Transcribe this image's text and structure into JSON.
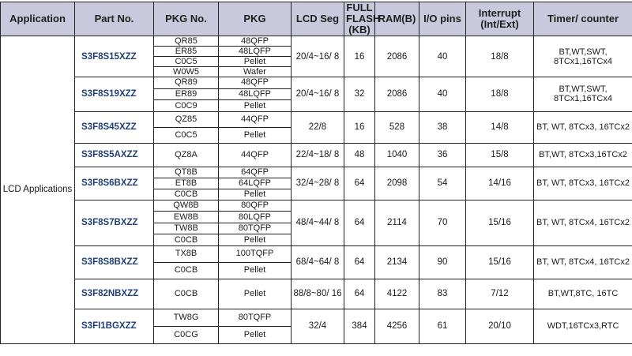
{
  "headers": {
    "application": "Application",
    "part_no": "Part No.",
    "pkg_no": "PKG No.",
    "pkg": "PKG",
    "lcd_seg": "LCD Seg",
    "flash": "FULL FLASH (KB)",
    "ram": "RAM(B)",
    "io": "I/O pins",
    "interrupt": "Interrupt (Int/Ext)",
    "timer": "Timer/ counter"
  },
  "application": "LCD Applications",
  "rows": [
    {
      "part": "S3F8S15XZZ",
      "pkgs": [
        {
          "no": "QR85",
          "pkg": "48QFP"
        },
        {
          "no": "ER85",
          "pkg": "48LQFP"
        },
        {
          "no": "C0C5",
          "pkg": "Pellet"
        },
        {
          "no": "W0W5",
          "pkg": "Wafer"
        }
      ],
      "lcd": "20/4~16/ 8",
      "flash": "16",
      "ram": "2086",
      "io": "40",
      "interrupt": "18/8",
      "timer": "BT,WT,SWT, 8TCx1,16TCx4"
    },
    {
      "part": "S3F8S19XZZ",
      "pkgs": [
        {
          "no": "QR89",
          "pkg": "48QFP"
        },
        {
          "no": "ER89",
          "pkg": "48LQFP"
        },
        {
          "no": "C0C9",
          "pkg": "Pellet"
        }
      ],
      "lcd": "20/4~16/ 8",
      "flash": "32",
      "ram": "2086",
      "io": "40",
      "interrupt": "18/8",
      "timer": "BT,WT,SWT, 8TCx1,16TCx4"
    },
    {
      "part": "S3F8S45XZZ",
      "pkgs": [
        {
          "no": "QZ85",
          "pkg": "44QFP"
        },
        {
          "no": "C0C5",
          "pkg": "Pellet"
        }
      ],
      "lcd": "22/8",
      "flash": "16",
      "ram": "528",
      "io": "38",
      "interrupt": "14/8",
      "timer": "BT, WT, 8TCx3, 16TCx2"
    },
    {
      "part": "S3F8S5AXZZ",
      "pkgs": [
        {
          "no": "QZ8A",
          "pkg": "44QFP"
        }
      ],
      "lcd": "22/4~18/ 8",
      "flash": "48",
      "ram": "1040",
      "io": "36",
      "interrupt": "15/8",
      "timer": "BT,WT, 8TCx3,16TCx2"
    },
    {
      "part": "S3F8S6BXZZ",
      "pkgs": [
        {
          "no": "QT8B",
          "pkg": "64QFP"
        },
        {
          "no": "ET8B",
          "pkg": "64LQFP"
        },
        {
          "no": "C0CB",
          "pkg": "Pellet"
        }
      ],
      "lcd": "32/4~28/ 8",
      "flash": "64",
      "ram": "2098",
      "io": "54",
      "interrupt": "14/16",
      "timer": "BT, WT, 8TCx3, 16TCx2"
    },
    {
      "part": "S3F8S7BXZZ",
      "pkgs": [
        {
          "no": "QW8B",
          "pkg": "80QFP"
        },
        {
          "no": "EW8B",
          "pkg": "80LQFP"
        },
        {
          "no": "TW8B",
          "pkg": "80TQFP"
        },
        {
          "no": "C0CB",
          "pkg": "Pellet"
        }
      ],
      "lcd": "48/4~44/ 8",
      "flash": "64",
      "ram": "2114",
      "io": "70",
      "interrupt": "15/16",
      "timer": "BT, WT, 8TCx4, 16TCx2"
    },
    {
      "part": "S3F8S8BXZZ",
      "pkgs": [
        {
          "no": "TX8B",
          "pkg": "100TQFP"
        },
        {
          "no": "C0CB",
          "pkg": "Pellet"
        }
      ],
      "lcd": "68/4~64/ 8",
      "flash": "64",
      "ram": "2134",
      "io": "90",
      "interrupt": "15/16",
      "timer": "BT, WT, 8TCx4, 16TCx2"
    },
    {
      "part": "S3F82NBXZZ",
      "pkgs": [
        {
          "no": "C0CB",
          "pkg": "Pellet"
        }
      ],
      "lcd": "88/8~80/ 16",
      "flash": "64",
      "ram": "4122",
      "io": "83",
      "interrupt": "7/12",
      "timer": "BT,WT,8TC, 16TC"
    },
    {
      "part": "S3FI1BGXZZ",
      "pkgs": [
        {
          "no": "TW8G",
          "pkg": "80TQFP"
        },
        {
          "no": "C0CG",
          "pkg": "Pellet"
        }
      ],
      "lcd": "32/4",
      "flash": "384",
      "ram": "4256",
      "io": "61",
      "interrupt": "20/10",
      "timer": "WDT,16TCx3,RTC"
    }
  ]
}
